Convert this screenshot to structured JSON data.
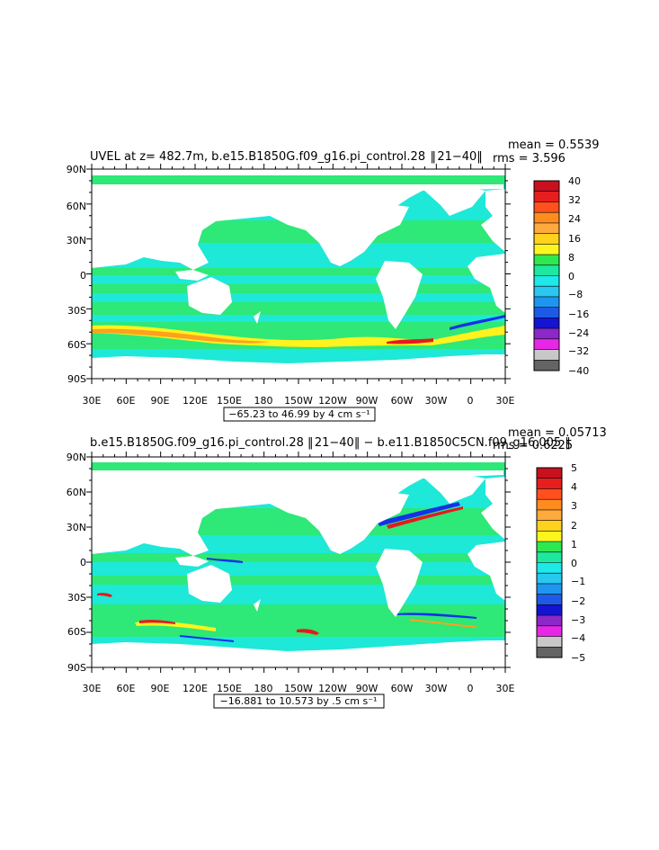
{
  "panels": [
    {
      "title": "UVEL at z= 482.7m, b.e15.B1850G.f09_g16.pi_control.28  ‖ 21−40‖",
      "mean_label": "mean = 0.5539",
      "rms_label": "rms = 3.596",
      "range_label": "−65.23 to 46.99 by 4 cm s⁻¹",
      "colorbar_labels": [
        "40",
        "32",
        "24",
        "16",
        "8",
        "0",
        "−8",
        "−16",
        "−24",
        "−32",
        "−40"
      ]
    },
    {
      "title": "b.e15.B1850G.f09_g16.pi_control.28 ‖ 21−40‖ − b.e11.B1850C5CN.f09_g16.005 ‖",
      "mean_label": "mean = 0.05713",
      "rms_label": "rms = 0.6225",
      "range_label": "−16.881 to 10.573 by .5 cm s⁻¹",
      "colorbar_labels": [
        "5",
        "4",
        "3",
        "2",
        "1",
        "0",
        "−1",
        "−2",
        "−3",
        "−4",
        "−5"
      ]
    }
  ],
  "lat_labels": [
    "90N",
    "60N",
    "30N",
    "0",
    "30S",
    "60S",
    "90S"
  ],
  "lon_labels": [
    "30E",
    "60E",
    "90E",
    "120E",
    "150E",
    "180",
    "150W",
    "120W",
    "90W",
    "60W",
    "30W",
    "0",
    "30E"
  ],
  "colors": {
    "land": "#ffffff",
    "ocean_main": "#1ee8d8",
    "ocean_green": "#2ee878",
    "band_yellow": "#fff21e",
    "band_orange": "#ffa01e",
    "band_red": "#e8181e",
    "band_blue": "#1432e6",
    "band_purple": "#8c28c8",
    "colorbar": [
      "#c8101e",
      "#e61e1e",
      "#ff501e",
      "#ff8c1e",
      "#ffaa3c",
      "#ffd21e",
      "#fff51e",
      "#2ee850",
      "#1ee8a0",
      "#1ee8e8",
      "#28c8f0",
      "#1e96f0",
      "#1e5ae6",
      "#1414d2",
      "#8c28c8",
      "#e628e6",
      "#c8c8c8",
      "#646464"
    ]
  }
}
